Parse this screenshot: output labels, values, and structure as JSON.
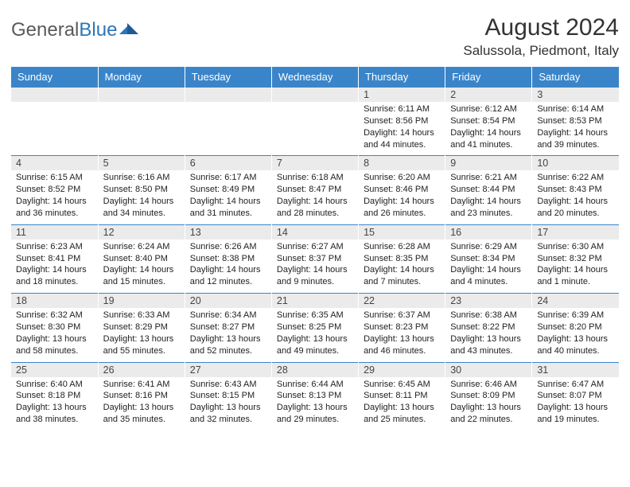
{
  "logo": {
    "text1": "General",
    "text2": "Blue"
  },
  "title": "August 2024",
  "location": "Salussola, Piedmont, Italy",
  "colors": {
    "header_bg": "#3a85c9",
    "header_text": "#ffffff",
    "daynum_bg": "#ebebeb",
    "border": "#3a85c9",
    "logo_gray": "#5a5a5a",
    "logo_blue": "#2e75b6"
  },
  "weekdays": [
    "Sunday",
    "Monday",
    "Tuesday",
    "Wednesday",
    "Thursday",
    "Friday",
    "Saturday"
  ],
  "weeks": [
    [
      {
        "n": "",
        "sr": "",
        "ss": "",
        "dl": ""
      },
      {
        "n": "",
        "sr": "",
        "ss": "",
        "dl": ""
      },
      {
        "n": "",
        "sr": "",
        "ss": "",
        "dl": ""
      },
      {
        "n": "",
        "sr": "",
        "ss": "",
        "dl": ""
      },
      {
        "n": "1",
        "sr": "Sunrise: 6:11 AM",
        "ss": "Sunset: 8:56 PM",
        "dl": "Daylight: 14 hours and 44 minutes."
      },
      {
        "n": "2",
        "sr": "Sunrise: 6:12 AM",
        "ss": "Sunset: 8:54 PM",
        "dl": "Daylight: 14 hours and 41 minutes."
      },
      {
        "n": "3",
        "sr": "Sunrise: 6:14 AM",
        "ss": "Sunset: 8:53 PM",
        "dl": "Daylight: 14 hours and 39 minutes."
      }
    ],
    [
      {
        "n": "4",
        "sr": "Sunrise: 6:15 AM",
        "ss": "Sunset: 8:52 PM",
        "dl": "Daylight: 14 hours and 36 minutes."
      },
      {
        "n": "5",
        "sr": "Sunrise: 6:16 AM",
        "ss": "Sunset: 8:50 PM",
        "dl": "Daylight: 14 hours and 34 minutes."
      },
      {
        "n": "6",
        "sr": "Sunrise: 6:17 AM",
        "ss": "Sunset: 8:49 PM",
        "dl": "Daylight: 14 hours and 31 minutes."
      },
      {
        "n": "7",
        "sr": "Sunrise: 6:18 AM",
        "ss": "Sunset: 8:47 PM",
        "dl": "Daylight: 14 hours and 28 minutes."
      },
      {
        "n": "8",
        "sr": "Sunrise: 6:20 AM",
        "ss": "Sunset: 8:46 PM",
        "dl": "Daylight: 14 hours and 26 minutes."
      },
      {
        "n": "9",
        "sr": "Sunrise: 6:21 AM",
        "ss": "Sunset: 8:44 PM",
        "dl": "Daylight: 14 hours and 23 minutes."
      },
      {
        "n": "10",
        "sr": "Sunrise: 6:22 AM",
        "ss": "Sunset: 8:43 PM",
        "dl": "Daylight: 14 hours and 20 minutes."
      }
    ],
    [
      {
        "n": "11",
        "sr": "Sunrise: 6:23 AM",
        "ss": "Sunset: 8:41 PM",
        "dl": "Daylight: 14 hours and 18 minutes."
      },
      {
        "n": "12",
        "sr": "Sunrise: 6:24 AM",
        "ss": "Sunset: 8:40 PM",
        "dl": "Daylight: 14 hours and 15 minutes."
      },
      {
        "n": "13",
        "sr": "Sunrise: 6:26 AM",
        "ss": "Sunset: 8:38 PM",
        "dl": "Daylight: 14 hours and 12 minutes."
      },
      {
        "n": "14",
        "sr": "Sunrise: 6:27 AM",
        "ss": "Sunset: 8:37 PM",
        "dl": "Daylight: 14 hours and 9 minutes."
      },
      {
        "n": "15",
        "sr": "Sunrise: 6:28 AM",
        "ss": "Sunset: 8:35 PM",
        "dl": "Daylight: 14 hours and 7 minutes."
      },
      {
        "n": "16",
        "sr": "Sunrise: 6:29 AM",
        "ss": "Sunset: 8:34 PM",
        "dl": "Daylight: 14 hours and 4 minutes."
      },
      {
        "n": "17",
        "sr": "Sunrise: 6:30 AM",
        "ss": "Sunset: 8:32 PM",
        "dl": "Daylight: 14 hours and 1 minute."
      }
    ],
    [
      {
        "n": "18",
        "sr": "Sunrise: 6:32 AM",
        "ss": "Sunset: 8:30 PM",
        "dl": "Daylight: 13 hours and 58 minutes."
      },
      {
        "n": "19",
        "sr": "Sunrise: 6:33 AM",
        "ss": "Sunset: 8:29 PM",
        "dl": "Daylight: 13 hours and 55 minutes."
      },
      {
        "n": "20",
        "sr": "Sunrise: 6:34 AM",
        "ss": "Sunset: 8:27 PM",
        "dl": "Daylight: 13 hours and 52 minutes."
      },
      {
        "n": "21",
        "sr": "Sunrise: 6:35 AM",
        "ss": "Sunset: 8:25 PM",
        "dl": "Daylight: 13 hours and 49 minutes."
      },
      {
        "n": "22",
        "sr": "Sunrise: 6:37 AM",
        "ss": "Sunset: 8:23 PM",
        "dl": "Daylight: 13 hours and 46 minutes."
      },
      {
        "n": "23",
        "sr": "Sunrise: 6:38 AM",
        "ss": "Sunset: 8:22 PM",
        "dl": "Daylight: 13 hours and 43 minutes."
      },
      {
        "n": "24",
        "sr": "Sunrise: 6:39 AM",
        "ss": "Sunset: 8:20 PM",
        "dl": "Daylight: 13 hours and 40 minutes."
      }
    ],
    [
      {
        "n": "25",
        "sr": "Sunrise: 6:40 AM",
        "ss": "Sunset: 8:18 PM",
        "dl": "Daylight: 13 hours and 38 minutes."
      },
      {
        "n": "26",
        "sr": "Sunrise: 6:41 AM",
        "ss": "Sunset: 8:16 PM",
        "dl": "Daylight: 13 hours and 35 minutes."
      },
      {
        "n": "27",
        "sr": "Sunrise: 6:43 AM",
        "ss": "Sunset: 8:15 PM",
        "dl": "Daylight: 13 hours and 32 minutes."
      },
      {
        "n": "28",
        "sr": "Sunrise: 6:44 AM",
        "ss": "Sunset: 8:13 PM",
        "dl": "Daylight: 13 hours and 29 minutes."
      },
      {
        "n": "29",
        "sr": "Sunrise: 6:45 AM",
        "ss": "Sunset: 8:11 PM",
        "dl": "Daylight: 13 hours and 25 minutes."
      },
      {
        "n": "30",
        "sr": "Sunrise: 6:46 AM",
        "ss": "Sunset: 8:09 PM",
        "dl": "Daylight: 13 hours and 22 minutes."
      },
      {
        "n": "31",
        "sr": "Sunrise: 6:47 AM",
        "ss": "Sunset: 8:07 PM",
        "dl": "Daylight: 13 hours and 19 minutes."
      }
    ]
  ]
}
